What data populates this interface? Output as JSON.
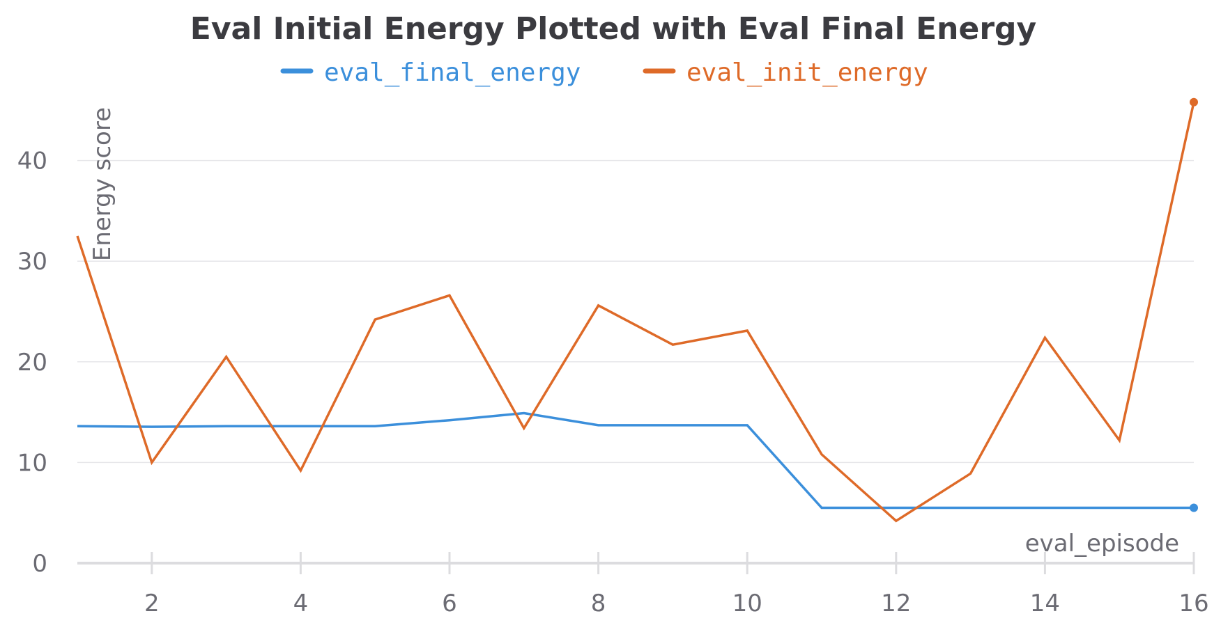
{
  "chart_data": {
    "type": "line",
    "title": "Eval Initial Energy Plotted with Eval Final Energy",
    "xlabel": "eval_episode",
    "ylabel": "Energy score",
    "x": [
      1,
      2,
      3,
      4,
      5,
      6,
      7,
      8,
      9,
      10,
      11,
      12,
      13,
      14,
      15,
      16
    ],
    "xlim": [
      1,
      16
    ],
    "ylim": [
      0,
      46
    ],
    "x_ticks": [
      "2",
      "4",
      "6",
      "8",
      "10",
      "12",
      "14",
      "16"
    ],
    "y_ticks": [
      "0",
      "10",
      "20",
      "30",
      "40"
    ],
    "grid": "horizontal",
    "legend_position": "top-center",
    "series": [
      {
        "name": "eval_final_energy",
        "color": "#3b8fdb",
        "values": [
          13.6,
          13.55,
          13.6,
          13.6,
          13.6,
          14.2,
          14.9,
          13.7,
          13.7,
          13.7,
          5.5,
          5.5,
          5.5,
          5.5,
          5.5,
          5.5
        ]
      },
      {
        "name": "eval_init_energy",
        "color": "#de6a28",
        "values": [
          32.5,
          10.0,
          20.5,
          9.2,
          24.2,
          26.6,
          13.4,
          25.6,
          21.7,
          23.1,
          10.8,
          4.2,
          8.9,
          22.4,
          12.2,
          45.8
        ]
      }
    ]
  }
}
